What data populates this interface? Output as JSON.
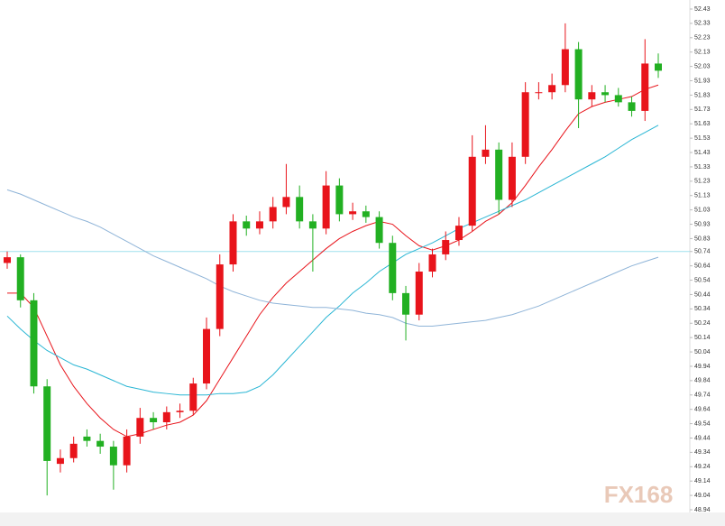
{
  "chart_data": {
    "type": "candlestick",
    "watermark": "FX168",
    "up_color": "#e8141b",
    "down_color": "#22b022",
    "price_line": 50.74,
    "ylim": [
      48.94,
      52.43
    ],
    "yticks": [
      52.43,
      52.33,
      52.23,
      52.13,
      52.03,
      51.93,
      51.83,
      51.73,
      51.63,
      51.53,
      51.43,
      51.33,
      51.23,
      51.13,
      51.03,
      50.93,
      50.83,
      50.74,
      50.64,
      50.54,
      50.44,
      50.34,
      50.24,
      50.14,
      50.04,
      49.94,
      49.84,
      49.74,
      49.64,
      49.54,
      49.44,
      49.34,
      49.24,
      49.14,
      49.04,
      48.94
    ],
    "open": [
      50.66,
      50.7,
      50.4,
      49.8,
      49.26,
      49.3,
      49.45,
      49.42,
      49.38,
      49.25,
      49.45,
      49.58,
      49.55,
      49.62,
      49.63,
      49.82,
      50.2,
      50.65,
      50.95,
      50.9,
      50.95,
      51.05,
      51.12,
      50.95,
      50.9,
      51.2,
      51.0,
      51.02,
      50.98,
      50.8,
      50.45,
      50.3,
      50.6,
      50.72,
      50.82,
      50.92,
      51.4,
      51.45,
      51.1,
      51.4,
      51.85,
      51.85,
      51.9,
      52.15,
      51.8,
      51.85,
      51.83,
      51.78,
      51.72,
      52.05
    ],
    "high": [
      50.74,
      50.72,
      50.45,
      49.85,
      49.36,
      49.45,
      49.5,
      49.47,
      49.42,
      49.5,
      49.65,
      49.62,
      49.66,
      49.68,
      49.86,
      50.28,
      50.72,
      51.0,
      50.99,
      51.02,
      51.12,
      51.35,
      51.2,
      51.0,
      51.3,
      51.25,
      51.08,
      51.06,
      51.02,
      50.85,
      50.5,
      50.66,
      50.76,
      50.88,
      50.98,
      51.55,
      51.62,
      51.5,
      51.5,
      51.92,
      51.92,
      51.98,
      52.33,
      52.2,
      51.9,
      51.9,
      51.88,
      51.82,
      52.22,
      52.12
    ],
    "low": [
      50.62,
      50.35,
      49.75,
      49.04,
      49.2,
      49.27,
      49.38,
      49.33,
      49.08,
      49.2,
      49.4,
      49.5,
      49.5,
      49.58,
      49.6,
      49.78,
      50.15,
      50.6,
      50.85,
      50.86,
      50.9,
      51.0,
      50.9,
      50.6,
      50.86,
      50.95,
      50.96,
      50.94,
      50.76,
      50.4,
      50.12,
      50.26,
      50.56,
      50.68,
      50.78,
      50.88,
      51.35,
      51.0,
      51.05,
      51.35,
      51.8,
      51.8,
      51.85,
      51.6,
      51.75,
      51.78,
      51.75,
      51.68,
      51.65,
      51.95
    ],
    "close": [
      50.7,
      50.4,
      49.8,
      49.28,
      49.3,
      49.4,
      49.42,
      49.38,
      49.25,
      49.45,
      49.58,
      49.55,
      49.62,
      49.63,
      49.82,
      50.2,
      50.65,
      50.95,
      50.9,
      50.95,
      51.05,
      51.12,
      50.95,
      50.9,
      51.2,
      51.0,
      51.02,
      50.98,
      50.8,
      50.45,
      50.3,
      50.6,
      50.72,
      50.82,
      50.92,
      51.4,
      51.45,
      51.1,
      51.4,
      51.85,
      51.85,
      51.9,
      52.15,
      51.8,
      51.85,
      51.83,
      51.78,
      51.72,
      52.05,
      52.0
    ],
    "series": [
      {
        "color": "#e8141b",
        "values": [
          50.45,
          50.45,
          50.35,
          50.15,
          49.95,
          49.8,
          49.68,
          49.58,
          49.5,
          49.45,
          49.47,
          49.5,
          49.53,
          49.55,
          49.6,
          49.7,
          49.85,
          50.0,
          50.15,
          50.3,
          50.42,
          50.52,
          50.6,
          50.68,
          50.76,
          50.83,
          50.88,
          50.92,
          50.95,
          50.93,
          50.85,
          50.78,
          50.75,
          50.78,
          50.82,
          50.88,
          50.95,
          51.0,
          51.08,
          51.2,
          51.33,
          51.45,
          51.58,
          51.7,
          51.75,
          51.78,
          51.8,
          51.82,
          51.87,
          51.9
        ]
      },
      {
        "color": "#2ab6d4",
        "values": [
          50.29,
          50.2,
          50.12,
          50.05,
          50.0,
          49.95,
          49.92,
          49.88,
          49.84,
          49.8,
          49.78,
          49.76,
          49.75,
          49.74,
          49.74,
          49.74,
          49.75,
          49.75,
          49.76,
          49.8,
          49.88,
          49.98,
          50.08,
          50.18,
          50.28,
          50.36,
          50.45,
          50.52,
          50.6,
          50.66,
          50.72,
          50.76,
          50.8,
          50.85,
          50.9,
          50.94,
          50.98,
          51.02,
          51.06,
          51.1,
          51.15,
          51.2,
          51.25,
          51.3,
          51.35,
          51.4,
          51.46,
          51.52,
          51.57,
          51.62
        ]
      },
      {
        "color": "#8fb4d8",
        "values": [
          51.17,
          51.14,
          51.1,
          51.06,
          51.02,
          50.98,
          50.95,
          50.91,
          50.86,
          50.81,
          50.76,
          50.71,
          50.67,
          50.63,
          50.59,
          50.55,
          50.5,
          50.46,
          50.43,
          50.4,
          50.38,
          50.37,
          50.36,
          50.35,
          50.35,
          50.34,
          50.33,
          50.31,
          50.3,
          50.28,
          50.24,
          50.22,
          50.22,
          50.23,
          50.24,
          50.25,
          50.26,
          50.28,
          50.3,
          50.33,
          50.36,
          50.4,
          50.44,
          50.48,
          50.52,
          50.56,
          50.6,
          50.64,
          50.67,
          50.7
        ]
      }
    ]
  }
}
